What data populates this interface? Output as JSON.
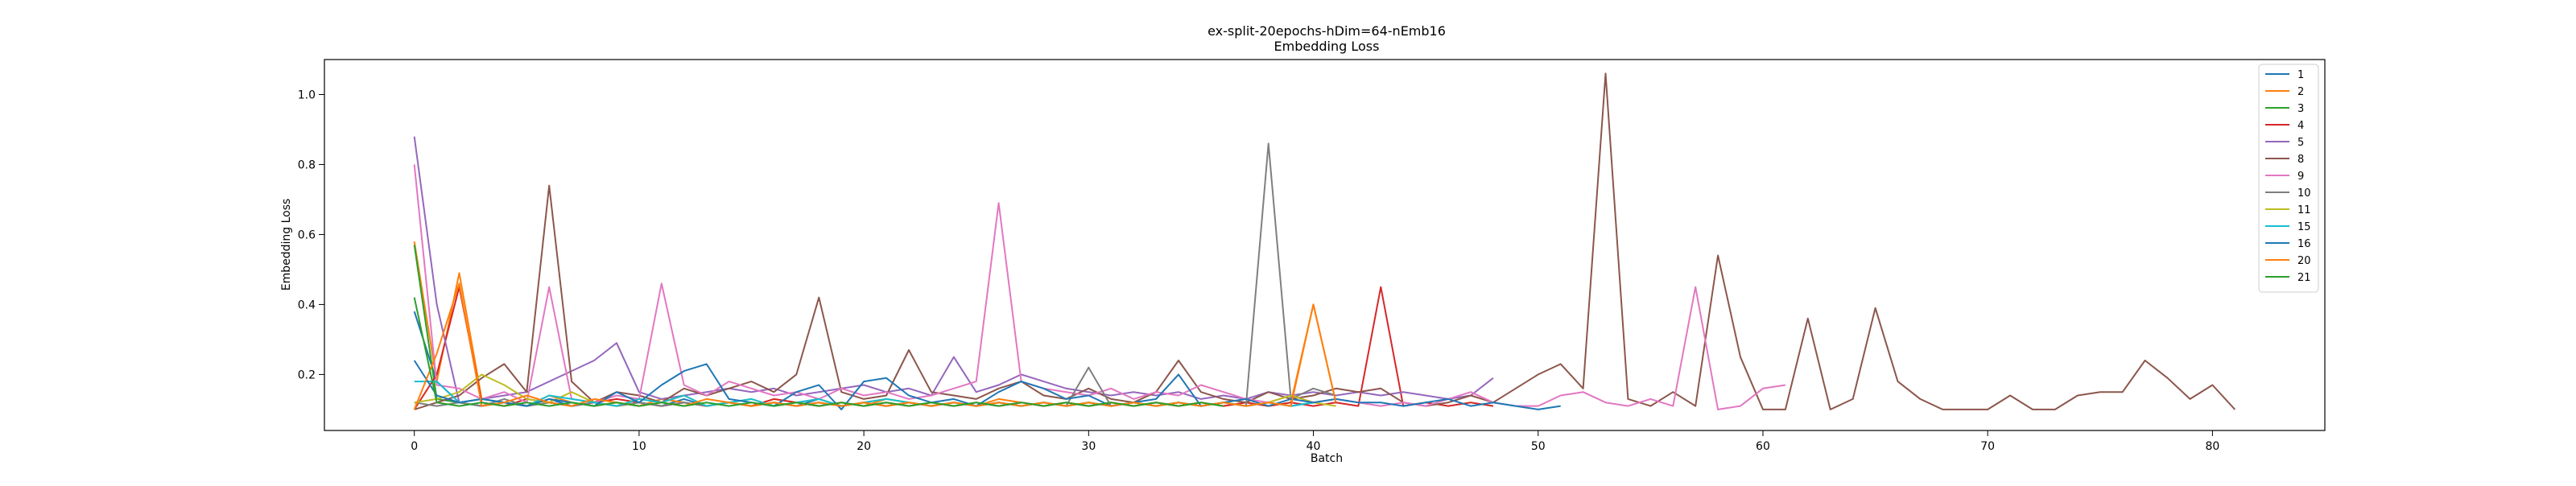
{
  "chart_data": {
    "type": "line",
    "title": "ex-split-20epochs-hDim=64-nEmb16",
    "subtitle": "Embedding Loss",
    "xlabel": "Batch",
    "ylabel": "Embedding Loss",
    "xlim": [
      -4,
      85
    ],
    "ylim": [
      0.04,
      1.1
    ],
    "xticks": [
      0,
      10,
      20,
      30,
      40,
      50,
      60,
      70,
      80
    ],
    "yticks": [
      0.2,
      0.4,
      0.6,
      0.8,
      1.0
    ],
    "xtick_labels": [
      "0",
      "10",
      "20",
      "30",
      "40",
      "50",
      "60",
      "70",
      "80"
    ],
    "ytick_labels": [
      "0.2",
      "0.4",
      "0.6",
      "0.8",
      "1.0"
    ],
    "grid": false,
    "legend_position": "top-right",
    "series": [
      {
        "name": "1",
        "color": "#1f77b4",
        "values": [
          0.38,
          0.18,
          0.12,
          0.11,
          0.12,
          0.11,
          0.13,
          0.11,
          0.12,
          0.11,
          0.12,
          0.11,
          0.13,
          0.11,
          0.12,
          0.11,
          0.12,
          0.11,
          0.13,
          0.11,
          0.12,
          0.11,
          0.12,
          0.11,
          0.12,
          0.11,
          0.12,
          0.11,
          0.12,
          0.11,
          0.12,
          0.11,
          0.12,
          0.11,
          0.12,
          0.11,
          0.12,
          0.11,
          0.12,
          0.11,
          0.12
        ]
      },
      {
        "name": "2",
        "color": "#ff7f0e",
        "values": [
          0.58,
          0.18,
          0.49,
          0.13,
          0.12,
          0.11,
          0.14,
          0.12,
          0.11,
          0.12,
          0.11,
          0.13,
          0.12,
          0.11,
          0.12,
          0.11,
          0.13,
          0.12,
          0.11,
          0.12,
          0.11,
          0.13,
          0.12,
          0.11,
          0.12,
          0.11,
          0.13,
          0.12,
          0.11,
          0.12,
          0.11,
          0.12,
          0.11,
          0.12,
          0.11,
          0.12,
          0.11,
          0.12,
          0.11,
          0.12,
          0.4,
          0.12
        ]
      },
      {
        "name": "3",
        "color": "#2ca02c",
        "values": [
          0.57,
          0.13,
          0.12,
          0.11,
          0.12,
          0.11,
          0.12,
          0.11,
          0.12,
          0.11,
          0.12,
          0.11,
          0.12,
          0.11,
          0.12,
          0.11,
          0.12,
          0.11,
          0.12,
          0.11,
          0.12,
          0.11,
          0.12,
          0.11,
          0.12,
          0.11,
          0.12,
          0.11,
          0.12,
          0.11,
          0.12,
          0.11,
          0.12,
          0.11,
          0.12,
          0.11,
          0.12,
          0.11
        ]
      },
      {
        "name": "4",
        "color": "#d62728",
        "values": [
          0.1,
          0.2,
          0.45,
          0.12,
          0.11,
          0.13,
          0.12,
          0.11,
          0.12,
          0.13,
          0.12,
          0.11,
          0.12,
          0.11,
          0.12,
          0.11,
          0.13,
          0.12,
          0.11,
          0.12,
          0.11,
          0.12,
          0.11,
          0.12,
          0.11,
          0.12,
          0.11,
          0.12,
          0.11,
          0.12,
          0.11,
          0.12,
          0.11,
          0.12,
          0.11,
          0.12,
          0.11,
          0.12,
          0.11,
          0.12,
          0.11,
          0.12,
          0.11,
          0.45,
          0.11,
          0.12,
          0.11,
          0.12,
          0.11
        ]
      },
      {
        "name": "5",
        "color": "#9467bd",
        "values": [
          0.88,
          0.4,
          0.12,
          0.13,
          0.14,
          0.15,
          0.18,
          0.21,
          0.24,
          0.29,
          0.15,
          0.13,
          0.14,
          0.15,
          0.16,
          0.15,
          0.16,
          0.14,
          0.15,
          0.16,
          0.17,
          0.15,
          0.16,
          0.14,
          0.25,
          0.15,
          0.17,
          0.2,
          0.18,
          0.16,
          0.15,
          0.14,
          0.15,
          0.14,
          0.15,
          0.13,
          0.14,
          0.13,
          0.15,
          0.14,
          0.15,
          0.14,
          0.15,
          0.14,
          0.15,
          0.14,
          0.13,
          0.14,
          0.19
        ]
      },
      {
        "name": "8",
        "color": "#8c564b",
        "values": [
          0.1,
          0.12,
          0.14,
          0.19,
          0.23,
          0.15,
          0.74,
          0.18,
          0.12,
          0.15,
          0.14,
          0.12,
          0.16,
          0.14,
          0.16,
          0.18,
          0.15,
          0.2,
          0.42,
          0.15,
          0.13,
          0.14,
          0.27,
          0.15,
          0.14,
          0.13,
          0.16,
          0.18,
          0.14,
          0.13,
          0.16,
          0.13,
          0.12,
          0.15,
          0.24,
          0.15,
          0.13,
          0.12,
          0.15,
          0.13,
          0.14,
          0.16,
          0.15,
          0.16,
          0.12,
          0.11,
          0.12,
          0.14,
          0.12,
          0.16,
          0.2,
          0.23,
          0.16,
          1.06,
          0.13,
          0.11,
          0.15,
          0.11,
          0.54,
          0.25,
          0.1,
          0.1,
          0.36,
          0.1,
          0.13,
          0.39,
          0.18,
          0.13,
          0.1,
          0.1,
          0.1,
          0.14,
          0.1,
          0.1,
          0.14,
          0.15,
          0.15,
          0.24,
          0.19,
          0.13,
          0.17,
          0.1
        ]
      },
      {
        "name": "9",
        "color": "#e377c2",
        "values": [
          0.8,
          0.17,
          0.16,
          0.13,
          0.15,
          0.12,
          0.45,
          0.13,
          0.12,
          0.14,
          0.13,
          0.46,
          0.17,
          0.14,
          0.18,
          0.16,
          0.14,
          0.15,
          0.13,
          0.16,
          0.14,
          0.15,
          0.13,
          0.14,
          0.16,
          0.18,
          0.69,
          0.18,
          0.16,
          0.15,
          0.14,
          0.16,
          0.13,
          0.15,
          0.14,
          0.17,
          0.15,
          0.13,
          0.12,
          0.14,
          0.12,
          0.13,
          0.12,
          0.11,
          0.12,
          0.11,
          0.13,
          0.15,
          0.12,
          0.11,
          0.11,
          0.14,
          0.15,
          0.12,
          0.11,
          0.13,
          0.11,
          0.45,
          0.1,
          0.11,
          0.16,
          0.17
        ]
      },
      {
        "name": "10",
        "color": "#7f7f7f",
        "values": [
          0.12,
          0.11,
          0.12,
          0.11,
          0.13,
          0.11,
          0.12,
          0.11,
          0.12,
          0.11,
          0.12,
          0.11,
          0.12,
          0.11,
          0.12,
          0.11,
          0.12,
          0.11,
          0.12,
          0.11,
          0.12,
          0.11,
          0.12,
          0.11,
          0.12,
          0.11,
          0.12,
          0.11,
          0.12,
          0.11,
          0.22,
          0.11,
          0.12,
          0.11,
          0.12,
          0.11,
          0.12,
          0.11,
          0.86,
          0.13,
          0.16,
          0.14
        ]
      },
      {
        "name": "11",
        "color": "#bcbd22",
        "values": [
          0.12,
          0.13,
          0.15,
          0.2,
          0.17,
          0.13,
          0.12,
          0.15,
          0.12,
          0.11,
          0.13,
          0.12,
          0.14,
          0.11,
          0.12,
          0.13,
          0.11,
          0.12,
          0.13,
          0.11,
          0.12,
          0.13,
          0.12,
          0.11,
          0.12,
          0.11,
          0.12,
          0.11,
          0.12,
          0.11,
          0.12,
          0.11,
          0.12,
          0.11,
          0.12,
          0.11,
          0.12,
          0.11,
          0.12,
          0.14,
          0.12,
          0.11
        ]
      },
      {
        "name": "15",
        "color": "#17becf",
        "values": [
          0.18,
          0.18,
          0.12,
          0.13,
          0.12,
          0.11,
          0.14,
          0.13,
          0.12,
          0.11,
          0.13,
          0.12,
          0.14,
          0.11,
          0.12,
          0.13,
          0.11,
          0.12,
          0.13,
          0.11,
          0.12,
          0.13,
          0.12,
          0.11,
          0.12,
          0.11,
          0.12,
          0.11,
          0.12,
          0.11,
          0.12,
          0.11,
          0.12,
          0.11,
          0.12,
          0.11,
          0.12,
          0.11,
          0.12,
          0.11,
          0.12
        ]
      },
      {
        "name": "16",
        "color": "#1f77b4",
        "values": [
          0.24,
          0.14,
          0.12,
          0.13,
          0.12,
          0.11,
          0.13,
          0.12,
          0.11,
          0.15,
          0.12,
          0.17,
          0.21,
          0.23,
          0.13,
          0.12,
          0.11,
          0.15,
          0.17,
          0.1,
          0.18,
          0.19,
          0.14,
          0.12,
          0.13,
          0.11,
          0.15,
          0.18,
          0.16,
          0.13,
          0.14,
          0.11,
          0.12,
          0.13,
          0.2,
          0.11,
          0.12,
          0.13,
          0.11,
          0.13,
          0.12,
          0.13,
          0.12,
          0.12,
          0.11,
          0.12,
          0.13,
          0.11,
          0.12,
          0.11,
          0.1,
          0.11
        ]
      },
      {
        "name": "20",
        "color": "#ff7f0e",
        "values": [
          0.1,
          0.26,
          0.46,
          0.11,
          0.12,
          0.14,
          0.12,
          0.11,
          0.13,
          0.12,
          0.11,
          0.12,
          0.11,
          0.13,
          0.12,
          0.11,
          0.12,
          0.11,
          0.12,
          0.11,
          0.12,
          0.11,
          0.12,
          0.11,
          0.12,
          0.11,
          0.12,
          0.11,
          0.12,
          0.11,
          0.12,
          0.11,
          0.12,
          0.11,
          0.12,
          0.11,
          0.12,
          0.11,
          0.12,
          0.11,
          0.4,
          0.12
        ]
      },
      {
        "name": "21",
        "color": "#2ca02c",
        "values": [
          0.42,
          0.12,
          0.11,
          0.12,
          0.11,
          0.12,
          0.11,
          0.12,
          0.11,
          0.12,
          0.11,
          0.12,
          0.11,
          0.12,
          0.11,
          0.12,
          0.11,
          0.12,
          0.11,
          0.12,
          0.11,
          0.12,
          0.11,
          0.12,
          0.11,
          0.12,
          0.11,
          0.12,
          0.11,
          0.12,
          0.11,
          0.12,
          0.11,
          0.12,
          0.11,
          0.12,
          0.11
        ]
      }
    ]
  }
}
